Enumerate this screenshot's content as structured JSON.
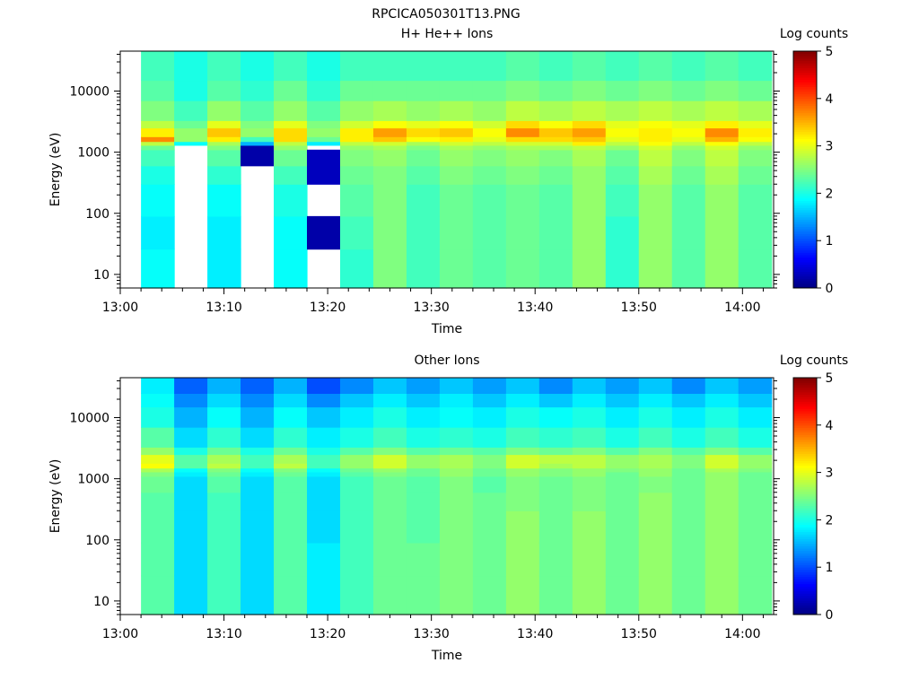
{
  "figure": {
    "title": "RPCICA050301T13.PNG"
  },
  "chart_data": [
    {
      "type": "heatmap",
      "title": "H+ He++ Ions",
      "xlabel": "Time",
      "ylabel": "Energy (eV)",
      "xlim": [
        "13:00",
        "14:03"
      ],
      "ylim": [
        6,
        45000
      ],
      "y_scale": "log",
      "x_ticks": [
        "13:00",
        "13:10",
        "13:20",
        "13:30",
        "13:40",
        "13:50",
        "14:00"
      ],
      "y_ticks": [
        "10",
        "100",
        "1000",
        "10000"
      ],
      "colorbar": {
        "label": "Log counts",
        "range": [
          0,
          5
        ],
        "ticks": [
          "0",
          "1",
          "2",
          "3",
          "4",
          "5"
        ],
        "colormap": "jet",
        "placement": "right"
      },
      "grid": false,
      "columns_start_min": [
        2,
        5.2,
        8.4,
        11.6,
        14.8,
        18,
        21.2,
        24.4,
        27.6,
        30.8,
        34,
        37.2,
        40.4,
        43.6,
        46.8,
        50,
        53.2,
        56.4,
        59.6
      ],
      "columns_end_min": 62.8,
      "energy_band_edges_eV": [
        6,
        26,
        90,
        300,
        600,
        1100,
        1300,
        1500,
        1800,
        2500,
        3300,
        7000,
        15000,
        45000
      ],
      "values": [
        [
          1.9,
          1.8,
          1.9,
          2.0,
          2.2,
          2.4,
          2.8,
          3.7,
          3.2,
          2.8,
          2.5,
          2.3,
          2.2
        ],
        [
          null,
          null,
          null,
          null,
          null,
          null,
          1.9,
          2.6,
          2.6,
          2.4,
          2.2,
          2.0,
          2.0
        ],
        [
          1.8,
          1.8,
          1.9,
          2.1,
          2.3,
          2.5,
          2.7,
          3.2,
          3.4,
          3.0,
          2.6,
          2.3,
          2.2
        ],
        [
          null,
          null,
          null,
          null,
          0.2,
          0.2,
          1.5,
          2.2,
          2.6,
          2.5,
          2.3,
          2.1,
          2.0
        ],
        [
          1.9,
          1.9,
          2.0,
          2.2,
          2.4,
          2.6,
          2.8,
          3.3,
          3.3,
          3.0,
          2.6,
          2.4,
          2.2
        ],
        [
          null,
          0.2,
          null,
          0.3,
          0.3,
          null,
          1.8,
          2.4,
          2.6,
          2.5,
          2.3,
          2.1,
          2.0
        ],
        [
          2.1,
          2.2,
          2.3,
          2.4,
          2.5,
          2.6,
          2.8,
          3.2,
          3.2,
          2.9,
          2.6,
          2.4,
          2.2
        ],
        [
          2.5,
          2.5,
          2.5,
          2.5,
          2.6,
          2.7,
          2.9,
          3.4,
          3.6,
          3.1,
          2.7,
          2.4,
          2.2
        ],
        [
          2.2,
          2.2,
          2.2,
          2.3,
          2.4,
          2.5,
          2.7,
          3.1,
          3.3,
          3.0,
          2.6,
          2.4,
          2.2
        ],
        [
          2.4,
          2.4,
          2.4,
          2.5,
          2.6,
          2.7,
          2.9,
          3.2,
          3.4,
          3.1,
          2.7,
          2.4,
          2.2
        ],
        [
          2.3,
          2.3,
          2.3,
          2.4,
          2.5,
          2.6,
          2.8,
          3.0,
          3.1,
          2.9,
          2.6,
          2.4,
          2.2
        ],
        [
          2.4,
          2.4,
          2.4,
          2.5,
          2.6,
          2.7,
          2.9,
          3.3,
          3.7,
          3.3,
          2.8,
          2.5,
          2.3
        ],
        [
          2.3,
          2.3,
          2.3,
          2.4,
          2.5,
          2.7,
          2.9,
          3.3,
          3.4,
          3.1,
          2.7,
          2.4,
          2.2
        ],
        [
          2.6,
          2.6,
          2.6,
          2.6,
          2.7,
          2.8,
          3.2,
          3.4,
          3.6,
          3.3,
          2.8,
          2.5,
          2.3
        ],
        [
          2.1,
          2.1,
          2.2,
          2.3,
          2.4,
          2.6,
          2.8,
          3.0,
          3.1,
          3.0,
          2.7,
          2.4,
          2.2
        ],
        [
          2.6,
          2.6,
          2.6,
          2.7,
          2.8,
          2.9,
          3.1,
          3.2,
          3.2,
          3.1,
          2.8,
          2.5,
          2.3
        ],
        [
          2.3,
          2.3,
          2.3,
          2.4,
          2.5,
          2.6,
          2.8,
          3.0,
          3.1,
          3.0,
          2.7,
          2.4,
          2.2
        ],
        [
          2.6,
          2.6,
          2.6,
          2.7,
          2.8,
          2.9,
          3.1,
          3.5,
          3.7,
          3.2,
          2.8,
          2.5,
          2.3
        ],
        [
          2.3,
          2.3,
          2.3,
          2.4,
          2.5,
          2.6,
          2.8,
          3.1,
          3.2,
          3.0,
          2.7,
          2.4,
          2.2
        ]
      ]
    },
    {
      "type": "heatmap",
      "title": "Other Ions",
      "xlabel": "Time",
      "ylabel": "Energy (eV)",
      "xlim": [
        "13:00",
        "14:03"
      ],
      "ylim": [
        6,
        45000
      ],
      "y_scale": "log",
      "x_ticks": [
        "13:00",
        "13:10",
        "13:20",
        "13:30",
        "13:40",
        "13:50",
        "14:00"
      ],
      "y_ticks": [
        "10",
        "100",
        "1000",
        "10000"
      ],
      "colorbar": {
        "label": "Log counts",
        "range": [
          0,
          5
        ],
        "ticks": [
          "0",
          "1",
          "2",
          "3",
          "4",
          "5"
        ],
        "colormap": "jet",
        "placement": "right"
      },
      "grid": false,
      "columns_start_min": [
        2,
        5.2,
        8.4,
        11.6,
        14.8,
        18,
        21.2,
        24.4,
        27.6,
        30.8,
        34,
        37.2,
        40.4,
        43.6,
        46.8,
        50,
        53.2,
        56.4,
        59.6
      ],
      "columns_end_min": 62.8,
      "energy_band_edges_eV": [
        6,
        26,
        90,
        300,
        600,
        1100,
        1300,
        1500,
        1800,
        2500,
        3300,
        7000,
        15000,
        25000,
        45000
      ],
      "values": [
        [
          2.3,
          2.3,
          2.3,
          2.3,
          2.4,
          2.5,
          2.7,
          3.1,
          3.0,
          2.6,
          2.3,
          2.0,
          1.9,
          1.8
        ],
        [
          1.7,
          1.7,
          1.7,
          1.7,
          1.7,
          1.8,
          1.9,
          2.3,
          2.3,
          2.0,
          1.7,
          1.5,
          1.3,
          1.1
        ],
        [
          2.2,
          2.2,
          2.2,
          2.2,
          2.3,
          2.4,
          2.5,
          2.8,
          2.7,
          2.4,
          2.1,
          1.9,
          1.7,
          1.5
        ],
        [
          1.7,
          1.7,
          1.7,
          1.7,
          1.7,
          1.8,
          1.9,
          2.2,
          2.2,
          2.0,
          1.7,
          1.5,
          1.3,
          1.1
        ],
        [
          2.3,
          2.3,
          2.3,
          2.3,
          2.3,
          2.4,
          2.5,
          2.8,
          2.7,
          2.4,
          2.1,
          1.9,
          1.7,
          1.5
        ],
        [
          1.8,
          1.8,
          1.7,
          1.7,
          1.7,
          1.8,
          1.9,
          2.2,
          2.2,
          2.0,
          1.8,
          1.6,
          1.3,
          1.0
        ],
        [
          2.2,
          2.2,
          2.2,
          2.2,
          2.2,
          2.3,
          2.4,
          2.6,
          2.6,
          2.3,
          2.0,
          1.8,
          1.6,
          1.3
        ],
        [
          2.4,
          2.4,
          2.4,
          2.4,
          2.4,
          2.5,
          2.6,
          2.9,
          2.9,
          2.5,
          2.2,
          2.0,
          1.8,
          1.6
        ],
        [
          2.4,
          2.4,
          2.3,
          2.3,
          2.3,
          2.4,
          2.4,
          2.6,
          2.6,
          2.3,
          2.0,
          1.8,
          1.6,
          1.4
        ],
        [
          2.5,
          2.5,
          2.5,
          2.5,
          2.5,
          2.6,
          2.6,
          2.7,
          2.7,
          2.4,
          2.1,
          1.9,
          1.8,
          1.6
        ],
        [
          2.4,
          2.4,
          2.4,
          2.4,
          2.3,
          2.4,
          2.4,
          2.5,
          2.5,
          2.3,
          2.0,
          1.8,
          1.6,
          1.4
        ],
        [
          2.6,
          2.6,
          2.6,
          2.5,
          2.5,
          2.6,
          2.6,
          2.9,
          2.9,
          2.5,
          2.2,
          2.0,
          1.8,
          1.6
        ],
        [
          2.4,
          2.4,
          2.4,
          2.4,
          2.4,
          2.5,
          2.5,
          2.7,
          2.8,
          2.4,
          2.1,
          1.9,
          1.6,
          1.3
        ],
        [
          2.6,
          2.6,
          2.6,
          2.5,
          2.5,
          2.6,
          2.6,
          2.8,
          2.8,
          2.5,
          2.2,
          2.0,
          1.8,
          1.6
        ],
        [
          2.4,
          2.4,
          2.4,
          2.4,
          2.4,
          2.4,
          2.5,
          2.6,
          2.6,
          2.3,
          2.0,
          1.8,
          1.6,
          1.4
        ],
        [
          2.6,
          2.6,
          2.6,
          2.6,
          2.5,
          2.6,
          2.6,
          2.7,
          2.7,
          2.5,
          2.2,
          2.0,
          1.8,
          1.6
        ],
        [
          2.4,
          2.4,
          2.4,
          2.4,
          2.4,
          2.4,
          2.4,
          2.5,
          2.5,
          2.3,
          2.0,
          1.8,
          1.6,
          1.3
        ],
        [
          2.6,
          2.6,
          2.6,
          2.6,
          2.6,
          2.6,
          2.7,
          2.9,
          2.9,
          2.5,
          2.2,
          2.0,
          1.8,
          1.6
        ],
        [
          2.4,
          2.4,
          2.4,
          2.4,
          2.4,
          2.4,
          2.5,
          2.6,
          2.6,
          2.3,
          2.0,
          1.8,
          1.6,
          1.4
        ]
      ]
    }
  ]
}
